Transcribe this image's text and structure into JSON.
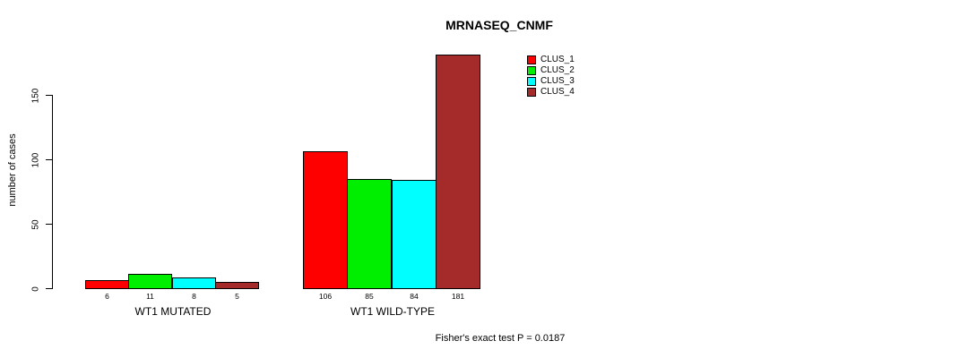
{
  "chart_data": {
    "type": "bar",
    "title": "MRNASEQ_CNMF",
    "xlabel": "",
    "ylabel": "number of cases",
    "ylim": [
      0,
      150
    ],
    "yticks": [
      0,
      50,
      100,
      150
    ],
    "grid": false,
    "legend_position": "top-right",
    "categories": [
      "WT1 MUTATED",
      "WT1 WILD-TYPE"
    ],
    "series": [
      {
        "name": "CLUS_1",
        "color": "#ff0000",
        "values": [
          6,
          106
        ]
      },
      {
        "name": "CLUS_2",
        "color": "#00ee00",
        "values": [
          11,
          85
        ]
      },
      {
        "name": "CLUS_3",
        "color": "#00ffff",
        "values": [
          8,
          84
        ]
      },
      {
        "name": "CLUS_4",
        "color": "#a52a2a",
        "values": [
          5,
          181
        ]
      }
    ],
    "bar_labels": [
      [
        6,
        11,
        8,
        5
      ],
      [
        106,
        85,
        84,
        181
      ]
    ],
    "annotation": "Fisher's exact test P = 0.0187"
  },
  "colors": {
    "background": "#ffffff",
    "axis": "#000000",
    "text": "#000000",
    "bar_border": "#000000"
  }
}
